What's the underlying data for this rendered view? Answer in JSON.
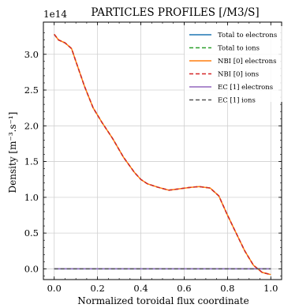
{
  "chart_data": {
    "type": "line",
    "title": "PARTICLES PROFILES [/M3/S]",
    "xlabel": "Normalized toroidal flux coordinate",
    "ylabel": "Density [m⁻³.s⁻¹]",
    "y_offset_label": "1e14",
    "y_scale": 100000000000000.0,
    "xlim": [
      -0.05,
      1.05
    ],
    "ylim": [
      -0.15,
      3.45
    ],
    "xticks": [
      0.0,
      0.2,
      0.4,
      0.6,
      0.8,
      1.0
    ],
    "xtick_labels": [
      "0.0",
      "0.2",
      "0.4",
      "0.6",
      "0.8",
      "1.0"
    ],
    "yticks": [
      0.0,
      0.5,
      1.0,
      1.5,
      2.0,
      2.5,
      3.0
    ],
    "ytick_labels": [
      "0.0",
      "0.5",
      "1.0",
      "1.5",
      "2.0",
      "2.5",
      "3.0"
    ],
    "grid": true,
    "legend_position": "top-right",
    "series": [
      {
        "name": "Total to electrons",
        "color": "#1f77b4",
        "dash": "solid",
        "x": [
          0.0,
          1.0
        ],
        "y": [
          0.0,
          0.0
        ]
      },
      {
        "name": "Total to ions",
        "color": "#2ca02c",
        "dash": "dashed",
        "x": [
          0.0,
          0.02,
          0.05,
          0.08,
          0.1,
          0.14,
          0.18,
          0.22,
          0.27,
          0.32,
          0.37,
          0.4,
          0.43,
          0.48,
          0.53,
          0.58,
          0.63,
          0.67,
          0.72,
          0.76,
          0.8,
          0.84,
          0.88,
          0.92,
          0.96,
          1.0
        ],
        "y": [
          3.28,
          3.2,
          3.16,
          3.08,
          2.9,
          2.55,
          2.25,
          2.05,
          1.82,
          1.56,
          1.35,
          1.25,
          1.19,
          1.14,
          1.1,
          1.12,
          1.14,
          1.15,
          1.13,
          1.02,
          0.75,
          0.5,
          0.25,
          0.05,
          -0.05,
          -0.08
        ]
      },
      {
        "name": "NBI [0] electrons",
        "color": "#ff7f0e",
        "dash": "solid",
        "x": [
          0.0,
          0.02,
          0.05,
          0.08,
          0.1,
          0.14,
          0.18,
          0.22,
          0.27,
          0.32,
          0.37,
          0.4,
          0.43,
          0.48,
          0.53,
          0.58,
          0.63,
          0.67,
          0.72,
          0.76,
          0.8,
          0.84,
          0.88,
          0.92,
          0.96,
          1.0
        ],
        "y": [
          3.28,
          3.2,
          3.16,
          3.08,
          2.9,
          2.55,
          2.25,
          2.05,
          1.82,
          1.56,
          1.35,
          1.25,
          1.19,
          1.14,
          1.1,
          1.12,
          1.14,
          1.15,
          1.13,
          1.02,
          0.75,
          0.5,
          0.25,
          0.05,
          -0.05,
          -0.08
        ]
      },
      {
        "name": "NBI [0] ions",
        "color": "#d62728",
        "dash": "dashed",
        "x": [
          0.0,
          0.02,
          0.05,
          0.08,
          0.1,
          0.14,
          0.18,
          0.22,
          0.27,
          0.32,
          0.37,
          0.4,
          0.43,
          0.48,
          0.53,
          0.58,
          0.63,
          0.67,
          0.72,
          0.76,
          0.8,
          0.84,
          0.88,
          0.92,
          0.96,
          1.0
        ],
        "y": [
          3.28,
          3.2,
          3.16,
          3.08,
          2.9,
          2.55,
          2.25,
          2.05,
          1.82,
          1.56,
          1.35,
          1.25,
          1.19,
          1.14,
          1.1,
          1.12,
          1.14,
          1.15,
          1.13,
          1.02,
          0.75,
          0.5,
          0.25,
          0.05,
          -0.05,
          -0.08
        ]
      },
      {
        "name": "EC [1] electrons",
        "color": "#9467bd",
        "dash": "solid",
        "x": [
          0.0,
          1.0
        ],
        "y": [
          0.0,
          0.0
        ]
      },
      {
        "name": "EC [1] ions",
        "color": "#555555",
        "dash": "dashed",
        "x": [
          0.0,
          1.0
        ],
        "y": [
          0.0,
          0.0
        ]
      }
    ]
  }
}
